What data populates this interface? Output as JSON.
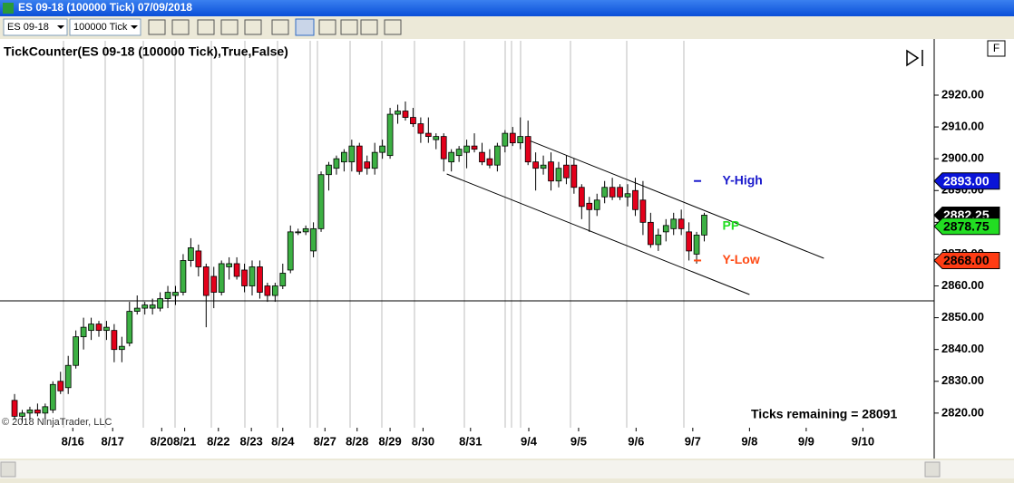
{
  "window": {
    "title": "ES 09-18 (100000 Tick)  07/09/2018"
  },
  "toolbar": {
    "instrument": "ES 09-18",
    "interval": "100000 Tick"
  },
  "button": "F",
  "chart_data": {
    "type": "candlestick",
    "title": "TickCounter(ES 09-18 (100000 Tick),True,False)",
    "up_color": "#3cb043",
    "down_color": "#e3001b",
    "ohlc": [
      [
        2824,
        2826,
        2818,
        2819
      ],
      [
        2819,
        2821,
        2817,
        2820
      ],
      [
        2820,
        2822,
        2818,
        2821
      ],
      [
        2821,
        2823,
        2819,
        2820
      ],
      [
        2820,
        2823,
        2818,
        2822
      ],
      [
        2821,
        2830,
        2820,
        2829
      ],
      [
        2830,
        2833,
        2826,
        2827
      ],
      [
        2828,
        2838,
        2826,
        2835
      ],
      [
        2835,
        2846,
        2834,
        2844
      ],
      [
        2844,
        2850,
        2840,
        2847
      ],
      [
        2846,
        2850,
        2843,
        2848
      ],
      [
        2848,
        2849,
        2844,
        2846
      ],
      [
        2846,
        2849,
        2843,
        2847
      ],
      [
        2846,
        2848,
        2836,
        2840
      ],
      [
        2840,
        2844,
        2836,
        2841
      ],
      [
        2842,
        2855,
        2841,
        2852
      ],
      [
        2852,
        2857,
        2851,
        2853
      ],
      [
        2853,
        2855,
        2851,
        2854
      ],
      [
        2853,
        2856,
        2851,
        2854
      ],
      [
        2853,
        2858,
        2852,
        2856
      ],
      [
        2856,
        2860,
        2853,
        2858
      ],
      [
        2857,
        2860,
        2854,
        2858
      ],
      [
        2858,
        2870,
        2857,
        2868
      ],
      [
        2868,
        2875,
        2866,
        2872
      ],
      [
        2871,
        2873,
        2863,
        2866
      ],
      [
        2866,
        2867,
        2847,
        2857
      ],
      [
        2863,
        2866,
        2853,
        2858
      ],
      [
        2858,
        2868,
        2857,
        2867
      ],
      [
        2866,
        2869,
        2862,
        2867
      ],
      [
        2867,
        2869,
        2862,
        2863
      ],
      [
        2865,
        2867,
        2858,
        2860
      ],
      [
        2860,
        2868,
        2857,
        2866
      ],
      [
        2866,
        2868,
        2856,
        2858
      ],
      [
        2860,
        2861,
        2855,
        2857
      ],
      [
        2857,
        2861,
        2855,
        2860
      ],
      [
        2860,
        2867,
        2859,
        2864
      ],
      [
        2865,
        2879,
        2864,
        2877
      ],
      [
        2877,
        2878,
        2876,
        2877
      ],
      [
        2877,
        2879,
        2876,
        2878
      ],
      [
        2871,
        2880,
        2869,
        2878
      ],
      [
        2878,
        2896,
        2877,
        2895
      ],
      [
        2895,
        2899,
        2890,
        2898
      ],
      [
        2897,
        2901,
        2895,
        2900
      ],
      [
        2899,
        2903,
        2896,
        2902
      ],
      [
        2899,
        2906,
        2896,
        2904
      ],
      [
        2904,
        2905,
        2895,
        2896
      ],
      [
        2899,
        2901,
        2895,
        2897
      ],
      [
        2897,
        2905,
        2895,
        2902
      ],
      [
        2902,
        2906,
        2900,
        2904
      ],
      [
        2901,
        2916,
        2900,
        2914
      ],
      [
        2914,
        2917,
        2911,
        2915
      ],
      [
        2915,
        2918,
        2912,
        2913
      ],
      [
        2913,
        2916,
        2910,
        2911
      ],
      [
        2911,
        2913,
        2905,
        2908
      ],
      [
        2908,
        2913,
        2905,
        2907
      ],
      [
        2906,
        2908,
        2903,
        2907
      ],
      [
        2907,
        2908,
        2896,
        2900
      ],
      [
        2899,
        2903,
        2896,
        2902
      ],
      [
        2901,
        2904,
        2899,
        2903
      ],
      [
        2902,
        2906,
        2897,
        2904
      ],
      [
        2904,
        2908,
        2902,
        2903
      ],
      [
        2902,
        2905,
        2898,
        2899
      ],
      [
        2900,
        2903,
        2897,
        2898
      ],
      [
        2898,
        2905,
        2896,
        2904
      ],
      [
        2904,
        2909,
        2902,
        2908
      ],
      [
        2908,
        2910,
        2904,
        2905
      ],
      [
        2905,
        2913,
        2903,
        2907
      ],
      [
        2907,
        2912,
        2898,
        2899
      ],
      [
        2899,
        2902,
        2890,
        2897
      ],
      [
        2897,
        2901,
        2895,
        2898
      ],
      [
        2899,
        2902,
        2890,
        2893
      ],
      [
        2893,
        2899,
        2891,
        2897
      ],
      [
        2898,
        2901,
        2892,
        2894
      ],
      [
        2898,
        2900,
        2889,
        2891
      ],
      [
        2891,
        2892,
        2881,
        2885
      ],
      [
        2886,
        2888,
        2877,
        2884
      ],
      [
        2884,
        2889,
        2882,
        2887
      ],
      [
        2888,
        2893,
        2886,
        2891
      ],
      [
        2891,
        2894,
        2887,
        2888
      ],
      [
        2891,
        2892,
        2887,
        2888
      ],
      [
        2888,
        2892,
        2885,
        2889
      ],
      [
        2890,
        2894,
        2882,
        2884
      ],
      [
        2887,
        2893,
        2876,
        2880
      ],
      [
        2880,
        2883,
        2872,
        2873
      ],
      [
        2873,
        2878,
        2871,
        2876
      ],
      [
        2877,
        2881,
        2874,
        2879
      ],
      [
        2878,
        2883,
        2876,
        2881
      ],
      [
        2881,
        2884,
        2876,
        2878
      ],
      [
        2877,
        2880,
        2868,
        2871
      ],
      [
        2870,
        2877,
        2867,
        2876
      ],
      [
        2876,
        2883,
        2874,
        2882.25
      ]
    ],
    "xlim": [
      -1.9,
      120
    ],
    "xticks": [
      {
        "value": 7.6,
        "label": "8/16"
      },
      {
        "value": 12.8,
        "label": "8/17"
      },
      {
        "value": 19.2,
        "label": "8/20"
      },
      {
        "value": 22.2,
        "label": "8/21"
      },
      {
        "value": 26.6,
        "label": "8/22"
      },
      {
        "value": 30.9,
        "label": "8/23"
      },
      {
        "value": 35,
        "label": "8/24"
      },
      {
        "value": 40.5,
        "label": "8/27"
      },
      {
        "value": 44.7,
        "label": "8/28"
      },
      {
        "value": 49,
        "label": "8/29"
      },
      {
        "value": 53.3,
        "label": "8/30"
      },
      {
        "value": 59.5,
        "label": "8/31"
      },
      {
        "value": 67.1,
        "label": "9/4"
      },
      {
        "value": 73.6,
        "label": "9/5"
      },
      {
        "value": 81.1,
        "label": "9/6"
      },
      {
        "value": 88.5,
        "label": "9/7"
      },
      {
        "value": 95.9,
        "label": "9/8"
      },
      {
        "value": 103.3,
        "label": "9/9"
      },
      {
        "value": 110.7,
        "label": "9/10"
      }
    ],
    "ylim": [
      2815.4,
      2937.1
    ],
    "yticks": [
      {
        "value": 2820,
        "label": "2820.00"
      },
      {
        "value": 2830,
        "label": "2830.00"
      },
      {
        "value": 2840,
        "label": "2840.00"
      },
      {
        "value": 2850,
        "label": "2850.00"
      },
      {
        "value": 2860,
        "label": "2860.00"
      },
      {
        "value": 2870,
        "label": "2870.00"
      },
      {
        "value": 2880,
        "label": "2880.00"
      },
      {
        "value": 2890,
        "label": "2890.00"
      },
      {
        "value": 2900,
        "label": "2900.00"
      },
      {
        "value": 2910,
        "label": "2910.00"
      },
      {
        "value": 2920,
        "label": "2920.00"
      }
    ],
    "hline": 2855.3,
    "trendlines": [
      {
        "x": [
          67.1,
          105.6
        ],
        "y": [
          2905.8,
          2868.7
        ]
      },
      {
        "x": [
          56.4,
          95.9
        ],
        "y": [
          2895.2,
          2857.3
        ]
      }
    ],
    "price_markers": [
      {
        "value": 2893,
        "label": "2893.00",
        "color": "#0a14d8",
        "text_color": "#ffffff"
      },
      {
        "value": 2882.25,
        "label": "2882.25",
        "color": "#000000",
        "text_color": "#ffffff"
      },
      {
        "value": 2878.75,
        "label": "2878.75",
        "color": "#22dd22",
        "text_color": "#000000"
      },
      {
        "value": 2868,
        "label": "2868.00",
        "color": "#ff3c14",
        "text_color": "#000000"
      }
    ],
    "annotations": [
      {
        "text": "Y-High",
        "value": 2893,
        "color": "#1a1acc"
      },
      {
        "text": "PP",
        "value": 2878.75,
        "color": "#22dd22"
      },
      {
        "text": "Y-Low",
        "value": 2868,
        "color": "#ff4a14"
      }
    ],
    "status": "Ticks remaining = 28091",
    "copyright": "© 2018 NinjaTrader, LLC"
  }
}
